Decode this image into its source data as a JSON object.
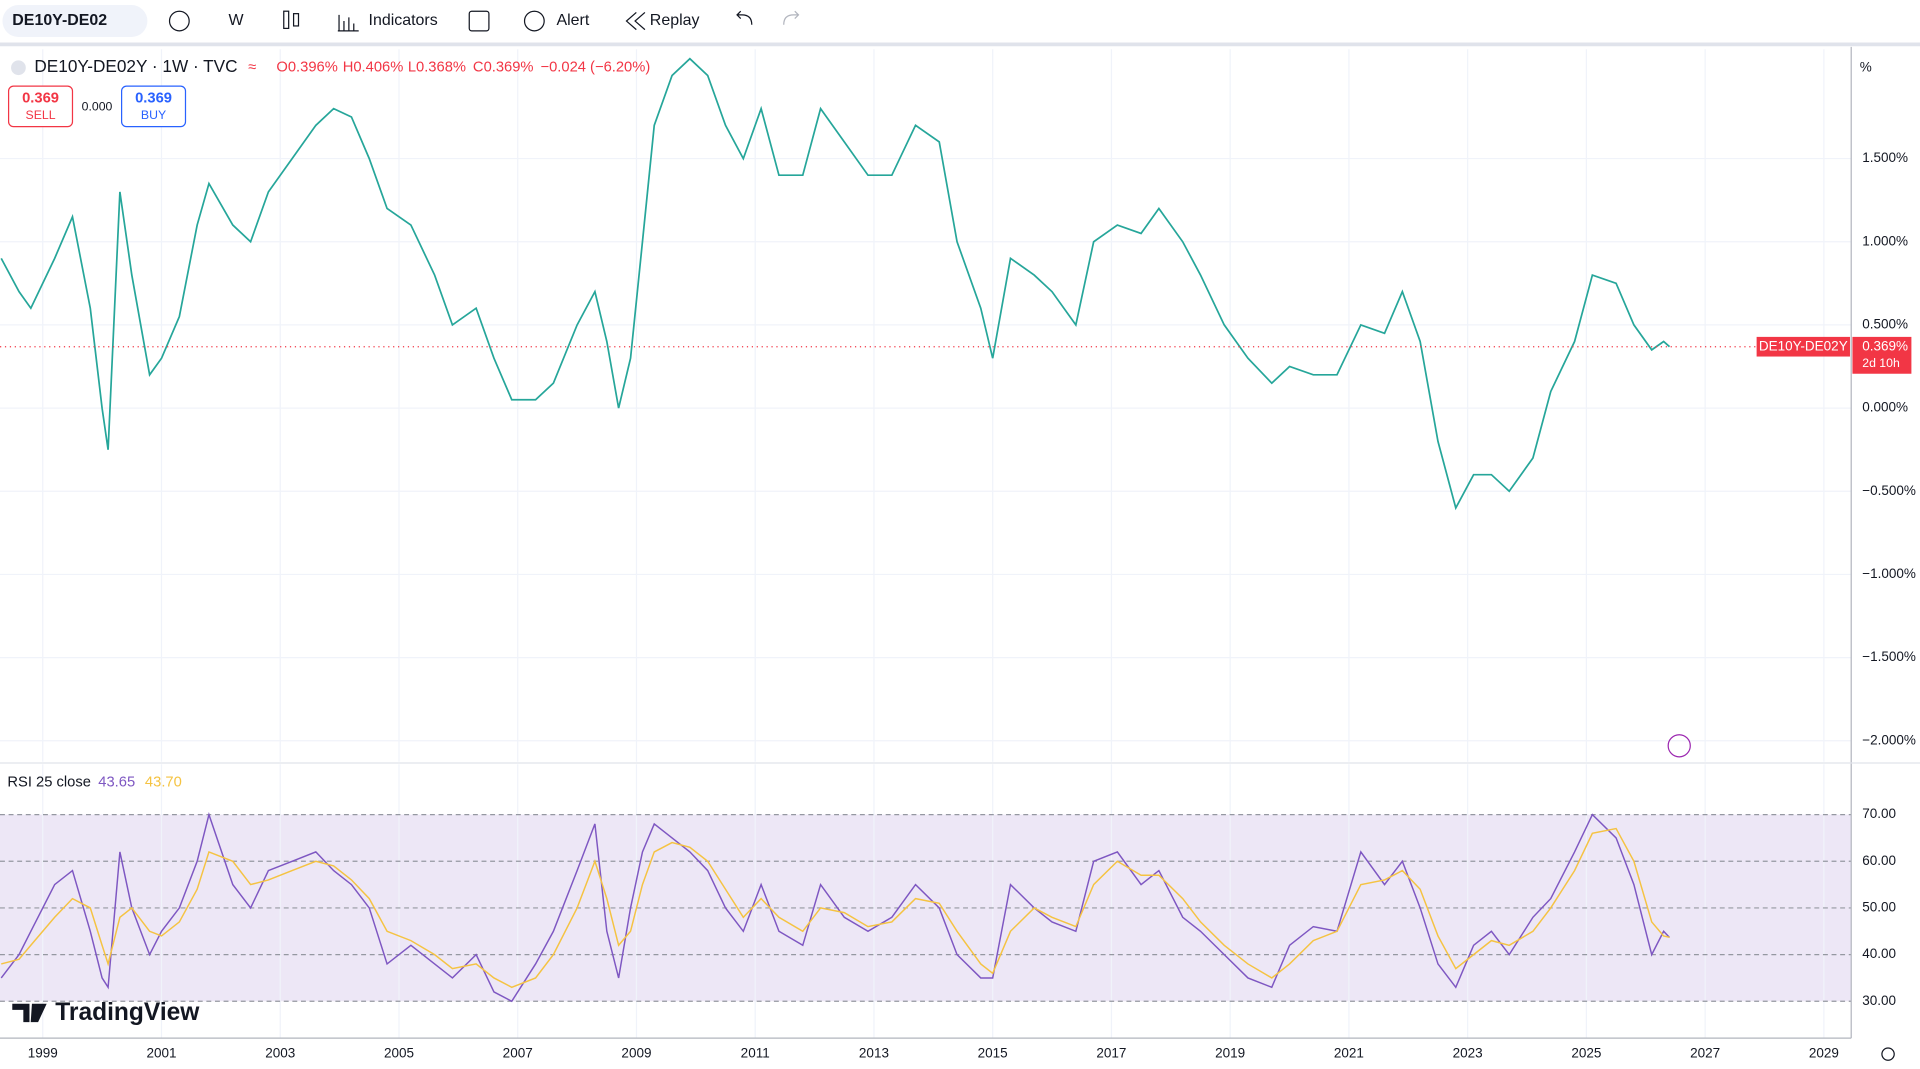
{
  "toolbar": {
    "symbol": "DE10Y-DE02",
    "interval": "W",
    "indicators": "Indicators",
    "alert": "Alert",
    "replay": "Replay"
  },
  "legend": {
    "title": "DE10Y-DE02Y · 1W · TVC",
    "open": "O0.396%",
    "high": "H0.406%",
    "low": "L0.368%",
    "close": "C0.369%",
    "change": "−0.024 (−6.20%)"
  },
  "trade": {
    "sell_price": "0.369",
    "sell": "SELL",
    "spread": "0.000",
    "buy_price": "0.369",
    "buy": "BUY"
  },
  "branding": "TradingView",
  "chart_data": [
    {
      "type": "line",
      "unit": "%",
      "x": [
        1998.3,
        1998.6,
        1998.8,
        1999.2,
        1999.5,
        1999.8,
        2000.0,
        2000.1,
        2000.3,
        2000.5,
        2000.8,
        2001.0,
        2001.3,
        2001.6,
        2001.8,
        2002.2,
        2002.5,
        2002.8,
        2003.2,
        2003.6,
        2003.9,
        2004.2,
        2004.5,
        2004.8,
        2005.2,
        2005.6,
        2005.9,
        2006.3,
        2006.6,
        2006.9,
        2007.3,
        2007.6,
        2008.0,
        2008.3,
        2008.5,
        2008.7,
        2008.9,
        2009.1,
        2009.3,
        2009.6,
        2009.9,
        2010.2,
        2010.5,
        2010.8,
        2011.1,
        2011.4,
        2011.8,
        2012.1,
        2012.5,
        2012.9,
        2013.3,
        2013.7,
        2014.1,
        2014.4,
        2014.8,
        2015.0,
        2015.3,
        2015.7,
        2016.0,
        2016.4,
        2016.7,
        2017.1,
        2017.5,
        2017.8,
        2018.2,
        2018.5,
        2018.9,
        2019.3,
        2019.7,
        2020.0,
        2020.4,
        2020.8,
        2021.2,
        2021.6,
        2021.9,
        2022.2,
        2022.5,
        2022.8,
        2023.1,
        2023.4,
        2023.7,
        2024.1,
        2024.4,
        2024.8,
        2025.1,
        2025.5,
        2025.8,
        2026.1,
        2026.3,
        2026.4
      ],
      "series": [
        {
          "name": "DE10Y-DE02Y",
          "color": "#26a69a",
          "values": [
            0.9,
            0.7,
            0.6,
            0.9,
            1.15,
            0.6,
            0.0,
            -0.25,
            1.3,
            0.8,
            0.2,
            0.3,
            0.55,
            1.1,
            1.35,
            1.1,
            1.0,
            1.3,
            1.5,
            1.7,
            1.8,
            1.75,
            1.5,
            1.2,
            1.1,
            0.8,
            0.5,
            0.6,
            0.3,
            0.05,
            0.05,
            0.15,
            0.5,
            0.7,
            0.4,
            0.0,
            0.3,
            1.0,
            1.7,
            2.0,
            2.1,
            2.0,
            1.7,
            1.5,
            1.8,
            1.4,
            1.4,
            1.8,
            1.6,
            1.4,
            1.4,
            1.7,
            1.6,
            1.0,
            0.6,
            0.3,
            0.9,
            0.8,
            0.7,
            0.5,
            1.0,
            1.1,
            1.05,
            1.2,
            1.0,
            0.8,
            0.5,
            0.3,
            0.15,
            0.25,
            0.2,
            0.2,
            0.5,
            0.45,
            0.7,
            0.4,
            -0.2,
            -0.6,
            -0.4,
            -0.4,
            -0.5,
            -0.3,
            0.1,
            0.4,
            0.8,
            0.75,
            0.5,
            0.35,
            0.4,
            0.369
          ]
        }
      ],
      "last_label": "0.369%",
      "tag_color": "#f23645",
      "countdown": "2d 10h",
      "xlim": [
        1998.28,
        2029.46
      ],
      "xticks": [
        1999,
        2001,
        2003,
        2005,
        2007,
        2009,
        2011,
        2013,
        2015,
        2017,
        2019,
        2021,
        2023,
        2025,
        2027,
        2029
      ],
      "ylim": [
        -2.126,
        2.157
      ],
      "yticks": [
        {
          "value": 1.5,
          "label": "1.500%"
        },
        {
          "value": 1.0,
          "label": "1.000%"
        },
        {
          "value": 0.5,
          "label": "0.500%"
        },
        {
          "value": 0,
          "label": "0.000%"
        },
        {
          "value": -0.5,
          "label": "−0.500%"
        },
        {
          "value": -1.0,
          "label": "−1.000%"
        },
        {
          "value": -1.5,
          "label": "−1.500%"
        },
        {
          "value": -2.0,
          "label": "−2.000%"
        }
      ],
      "grid": true
    },
    {
      "type": "line",
      "title": "RSI 25 close",
      "x": [
        1998.3,
        1998.6,
        1998.8,
        1999.2,
        1999.5,
        1999.8,
        2000.0,
        2000.1,
        2000.3,
        2000.5,
        2000.8,
        2001.0,
        2001.3,
        2001.6,
        2001.8,
        2002.2,
        2002.5,
        2002.8,
        2003.2,
        2003.6,
        2003.9,
        2004.2,
        2004.5,
        2004.8,
        2005.2,
        2005.6,
        2005.9,
        2006.3,
        2006.6,
        2006.9,
        2007.3,
        2007.6,
        2008.0,
        2008.3,
        2008.5,
        2008.7,
        2008.9,
        2009.1,
        2009.3,
        2009.6,
        2009.9,
        2010.2,
        2010.5,
        2010.8,
        2011.1,
        2011.4,
        2011.8,
        2012.1,
        2012.5,
        2012.9,
        2013.3,
        2013.7,
        2014.1,
        2014.4,
        2014.8,
        2015.0,
        2015.3,
        2015.7,
        2016.0,
        2016.4,
        2016.7,
        2017.1,
        2017.5,
        2017.8,
        2018.2,
        2018.5,
        2018.9,
        2019.3,
        2019.7,
        2020.0,
        2020.4,
        2020.8,
        2021.2,
        2021.6,
        2021.9,
        2022.2,
        2022.5,
        2022.8,
        2023.1,
        2023.4,
        2023.7,
        2024.1,
        2024.4,
        2024.8,
        2025.1,
        2025.5,
        2025.8,
        2026.1,
        2026.3,
        2026.4
      ],
      "series": [
        {
          "color": "#7e57c2",
          "value_label": "43.65",
          "values": [
            35,
            40,
            45,
            55,
            58,
            45,
            35,
            33,
            62,
            50,
            40,
            45,
            50,
            60,
            70,
            55,
            50,
            58,
            60,
            62,
            58,
            55,
            50,
            38,
            42,
            38,
            35,
            40,
            32,
            30,
            38,
            45,
            58,
            68,
            45,
            35,
            50,
            62,
            68,
            65,
            62,
            58,
            50,
            45,
            55,
            45,
            42,
            55,
            48,
            45,
            48,
            55,
            50,
            40,
            35,
            35,
            55,
            50,
            47,
            45,
            60,
            62,
            55,
            58,
            48,
            45,
            40,
            35,
            33,
            42,
            46,
            45,
            62,
            55,
            60,
            50,
            38,
            33,
            42,
            45,
            40,
            48,
            52,
            62,
            70,
            65,
            55,
            40,
            45,
            43.65
          ]
        },
        {
          "color": "#f5c342",
          "value_label": "43.70",
          "values": [
            38,
            39,
            42,
            48,
            52,
            50,
            42,
            38,
            48,
            50,
            45,
            44,
            47,
            54,
            62,
            60,
            55,
            56,
            58,
            60,
            59,
            56,
            52,
            45,
            43,
            40,
            37,
            38,
            35,
            33,
            35,
            40,
            50,
            60,
            52,
            42,
            45,
            55,
            62,
            64,
            63,
            60,
            54,
            48,
            52,
            48,
            45,
            50,
            49,
            46,
            47,
            52,
            51,
            45,
            38,
            36,
            45,
            50,
            48,
            46,
            55,
            60,
            57,
            57,
            52,
            47,
            42,
            38,
            35,
            38,
            43,
            45,
            55,
            56,
            58,
            54,
            44,
            37,
            40,
            43,
            42,
            45,
            50,
            58,
            66,
            67,
            60,
            47,
            44,
            43.7
          ]
        }
      ],
      "xlim": [
        1998.28,
        2029.46
      ],
      "ylim": [
        22.1,
        80.8
      ],
      "yticks": [
        {
          "value": 70,
          "label": "70.00"
        },
        {
          "value": 60,
          "label": "60.00"
        },
        {
          "value": 50,
          "label": "50.00"
        },
        {
          "value": 40,
          "label": "40.00"
        },
        {
          "value": 30,
          "label": "30.00"
        }
      ],
      "band_color": "#ede7f6"
    }
  ]
}
